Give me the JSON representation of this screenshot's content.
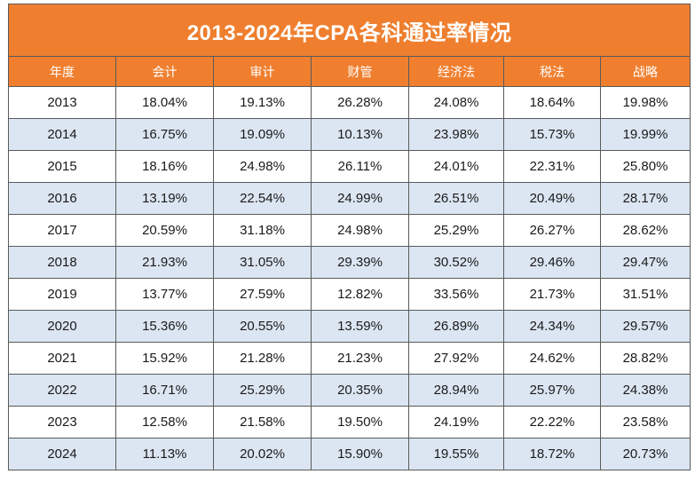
{
  "title": "2013-2024年CPA各科通过率情况",
  "headers": [
    "年度",
    "会计",
    "审计",
    "财管",
    "经济法",
    "税法",
    "战略"
  ],
  "rows": [
    [
      "2013",
      "18.04%",
      "19.13%",
      "26.28%",
      "24.08%",
      "18.64%",
      "19.98%"
    ],
    [
      "2014",
      "16.75%",
      "19.09%",
      "10.13%",
      "23.98%",
      "15.73%",
      "19.99%"
    ],
    [
      "2015",
      "18.16%",
      "24.98%",
      "26.11%",
      "24.01%",
      "22.31%",
      "25.80%"
    ],
    [
      "2016",
      "13.19%",
      "22.54%",
      "24.99%",
      "26.51%",
      "20.49%",
      "28.17%"
    ],
    [
      "2017",
      "20.59%",
      "31.18%",
      "24.98%",
      "25.29%",
      "26.27%",
      "28.62%"
    ],
    [
      "2018",
      "21.93%",
      "31.05%",
      "29.39%",
      "30.52%",
      "29.46%",
      "29.47%"
    ],
    [
      "2019",
      "13.77%",
      "27.59%",
      "12.82%",
      "33.56%",
      "21.73%",
      "31.51%"
    ],
    [
      "2020",
      "15.36%",
      "20.55%",
      "13.59%",
      "26.89%",
      "24.34%",
      "29.57%"
    ],
    [
      "2021",
      "15.92%",
      "21.28%",
      "21.23%",
      "27.92%",
      "24.62%",
      "28.82%"
    ],
    [
      "2022",
      "16.71%",
      "25.29%",
      "20.35%",
      "28.94%",
      "25.97%",
      "24.38%"
    ],
    [
      "2023",
      "12.58%",
      "21.58%",
      "19.50%",
      "24.19%",
      "22.22%",
      "23.58%"
    ],
    [
      "2024",
      "11.13%",
      "20.02%",
      "15.90%",
      "19.55%",
      "18.72%",
      "20.73%"
    ]
  ],
  "colors": {
    "header_bg": "#ef7f2f",
    "header_text": "#ffffff",
    "alt_row_bg": "#dce6f2",
    "border": "#5a5a5a"
  }
}
